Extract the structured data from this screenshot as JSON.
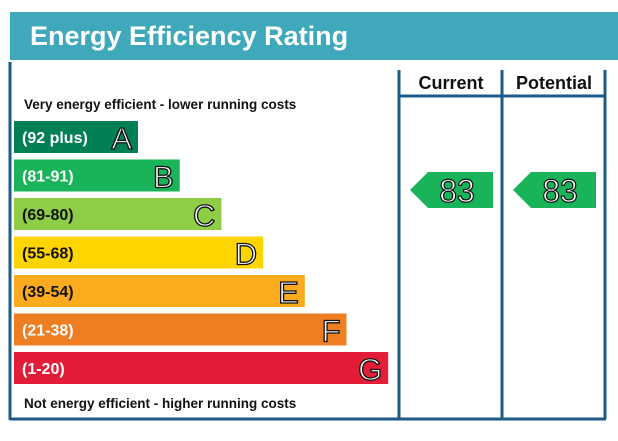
{
  "header": {
    "title": "Energy Efficiency Rating"
  },
  "top_note": "Very energy efficient - lower running costs",
  "bottom_note": "Not energy efficient - higher running costs",
  "columns": [
    "Current",
    "Potential"
  ],
  "bands": [
    {
      "range": "(92 plus)",
      "letter": "A",
      "color": "#008054"
    },
    {
      "range": "(81-91)",
      "letter": "B",
      "color": "#19b459"
    },
    {
      "range": "(69-80)",
      "letter": "C",
      "color": "#8dce46"
    },
    {
      "range": "(55-68)",
      "letter": "D",
      "color": "#ffd500"
    },
    {
      "range": "(39-54)",
      "letter": "E",
      "color": "#fcaa1e"
    },
    {
      "range": "(21-38)",
      "letter": "F",
      "color": "#ef7d22"
    },
    {
      "range": "(1-20)",
      "letter": "G",
      "color": "#e31d38"
    }
  ],
  "ratings": [
    {
      "value": 83,
      "color": "#19b459"
    },
    {
      "value": 83,
      "color": "#19b459"
    }
  ]
}
